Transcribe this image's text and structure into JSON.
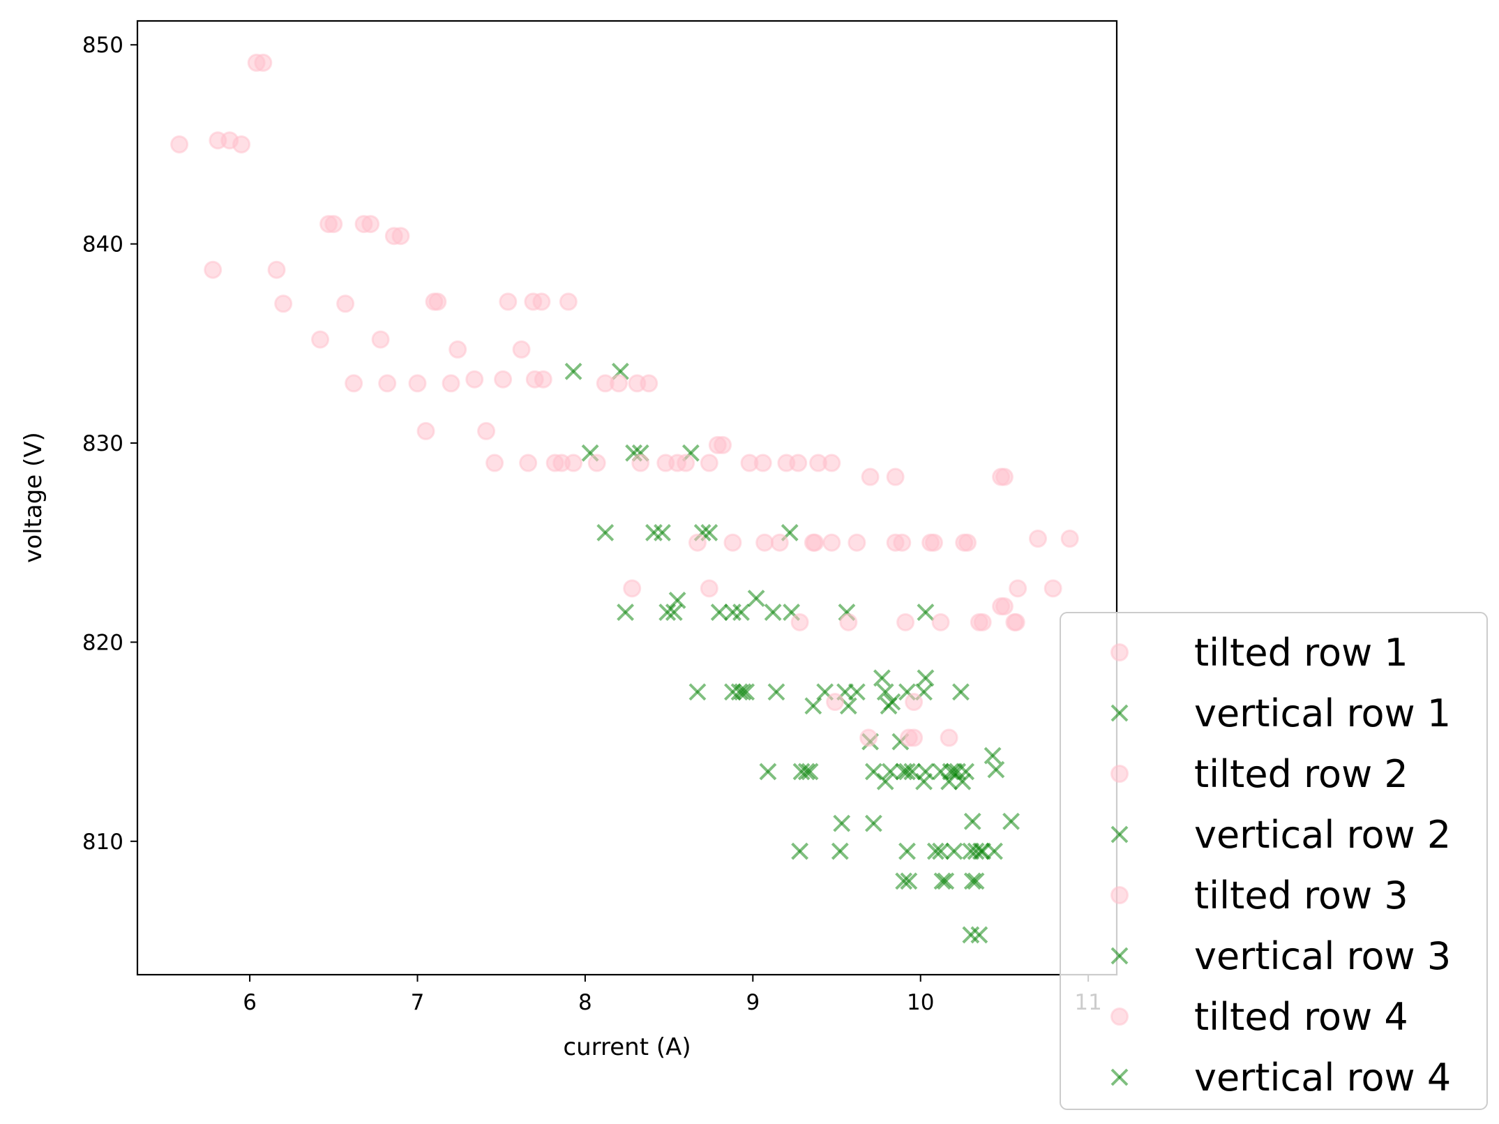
{
  "chart_data": {
    "type": "scatter",
    "xlabel": "current (A)",
    "ylabel": "voltage (V)",
    "xlim": [
      5.33,
      11.17
    ],
    "ylim": [
      803.3,
      851.2
    ],
    "xticks": [
      6,
      7,
      8,
      9,
      10,
      11
    ],
    "yticks": [
      810,
      820,
      830,
      840,
      850
    ],
    "grid": false,
    "legend_position": "lower-right",
    "colors": {
      "tilted": "#ffc0cb",
      "vertical": "#008000"
    },
    "series": [
      {
        "name": "tilted row 1",
        "marker": "circle",
        "points": [
          [
            5.58,
            845.0
          ],
          [
            5.81,
            845.2
          ],
          [
            5.88,
            845.2
          ],
          [
            5.95,
            845.0
          ],
          [
            6.04,
            849.1
          ],
          [
            6.08,
            849.1
          ],
          [
            5.78,
            838.7
          ],
          [
            6.16,
            838.7
          ],
          [
            6.2,
            837.0
          ],
          [
            6.47,
            841.0
          ],
          [
            6.5,
            841.0
          ],
          [
            6.68,
            841.0
          ],
          [
            6.72,
            841.0
          ],
          [
            6.86,
            840.4
          ],
          [
            6.9,
            840.4
          ],
          [
            6.42,
            835.2
          ],
          [
            6.57,
            837.0
          ],
          [
            6.62,
            833.0
          ],
          [
            6.78,
            835.2
          ],
          [
            6.82,
            833.0
          ]
        ]
      },
      {
        "name": "vertical row 1",
        "marker": "x",
        "points": [
          [
            7.93,
            833.6
          ],
          [
            8.21,
            833.6
          ],
          [
            8.03,
            829.5
          ],
          [
            8.29,
            829.5
          ],
          [
            8.33,
            829.5
          ],
          [
            8.63,
            829.5
          ],
          [
            8.12,
            825.5
          ],
          [
            8.41,
            825.5
          ],
          [
            8.46,
            825.5
          ],
          [
            8.7,
            825.5
          ],
          [
            8.74,
            825.5
          ],
          [
            9.22,
            825.5
          ],
          [
            8.24,
            821.5
          ],
          [
            8.49,
            821.5
          ],
          [
            8.53,
            821.5
          ],
          [
            8.55,
            822.1
          ],
          [
            8.8,
            821.5
          ],
          [
            8.88,
            821.5
          ],
          [
            8.93,
            821.5
          ],
          [
            9.02,
            822.2
          ],
          [
            9.12,
            821.5
          ],
          [
            9.23,
            821.5
          ],
          [
            9.56,
            821.5
          ],
          [
            10.03,
            821.5
          ]
        ]
      },
      {
        "name": "tilted row 2",
        "marker": "circle",
        "points": [
          [
            7.0,
            833.0
          ],
          [
            7.05,
            830.6
          ],
          [
            7.1,
            837.1
          ],
          [
            7.12,
            837.1
          ],
          [
            7.2,
            833.0
          ],
          [
            7.24,
            834.7
          ],
          [
            7.34,
            833.2
          ],
          [
            7.41,
            830.6
          ],
          [
            7.46,
            829.0
          ],
          [
            7.51,
            833.2
          ],
          [
            7.54,
            837.1
          ],
          [
            7.62,
            834.7
          ],
          [
            7.66,
            829.0
          ],
          [
            7.69,
            837.1
          ],
          [
            7.7,
            833.2
          ],
          [
            7.74,
            837.1
          ],
          [
            7.75,
            833.2
          ],
          [
            7.82,
            829.0
          ],
          [
            7.86,
            829.0
          ],
          [
            7.9,
            837.1
          ],
          [
            7.93,
            829.0
          ],
          [
            8.07,
            829.0
          ],
          [
            8.12,
            833.0
          ],
          [
            8.2,
            833.0
          ],
          [
            8.31,
            833.0
          ],
          [
            8.33,
            829.0
          ],
          [
            8.38,
            833.0
          ]
        ]
      },
      {
        "name": "vertical row 2",
        "marker": "x",
        "points": [
          [
            8.67,
            817.5
          ],
          [
            8.88,
            817.5
          ],
          [
            8.92,
            817.5
          ],
          [
            8.94,
            817.5
          ],
          [
            8.96,
            817.5
          ],
          [
            9.14,
            817.5
          ],
          [
            9.36,
            816.8
          ],
          [
            9.43,
            817.5
          ],
          [
            9.55,
            817.5
          ],
          [
            9.57,
            816.8
          ],
          [
            9.62,
            817.5
          ],
          [
            9.77,
            818.2
          ],
          [
            9.79,
            817.5
          ],
          [
            9.81,
            816.8
          ],
          [
            9.83,
            817.0
          ],
          [
            9.92,
            817.5
          ],
          [
            10.02,
            817.5
          ],
          [
            10.03,
            818.2
          ],
          [
            10.24,
            817.5
          ]
        ]
      },
      {
        "name": "tilted row 3",
        "marker": "circle",
        "points": [
          [
            8.28,
            822.7
          ],
          [
            8.48,
            829.0
          ],
          [
            8.55,
            829.0
          ],
          [
            8.6,
            829.0
          ],
          [
            8.67,
            825.0
          ],
          [
            8.74,
            829.0
          ],
          [
            8.74,
            822.7
          ],
          [
            8.79,
            829.9
          ],
          [
            8.82,
            829.9
          ],
          [
            8.88,
            825.0
          ],
          [
            8.98,
            829.0
          ],
          [
            9.06,
            829.0
          ],
          [
            9.07,
            825.0
          ],
          [
            9.16,
            825.0
          ],
          [
            9.2,
            829.0
          ],
          [
            9.27,
            829.0
          ],
          [
            9.28,
            821.0
          ],
          [
            9.36,
            825.0
          ],
          [
            9.37,
            825.0
          ],
          [
            9.39,
            829.0
          ],
          [
            9.47,
            825.0
          ],
          [
            9.47,
            829.0
          ],
          [
            9.49,
            817.0
          ],
          [
            9.57,
            821.0
          ],
          [
            9.62,
            825.0
          ],
          [
            9.7,
            828.3
          ],
          [
            9.85,
            828.3
          ],
          [
            9.85,
            825.0
          ],
          [
            9.89,
            825.0
          ]
        ]
      },
      {
        "name": "vertical row 3",
        "marker": "x",
        "points": [
          [
            9.09,
            813.5
          ],
          [
            9.29,
            813.5
          ],
          [
            9.32,
            813.5
          ],
          [
            9.34,
            813.5
          ],
          [
            9.7,
            815.0
          ],
          [
            9.72,
            813.5
          ],
          [
            9.79,
            813.0
          ],
          [
            9.82,
            813.5
          ],
          [
            9.88,
            815.0
          ],
          [
            9.9,
            813.5
          ],
          [
            9.92,
            813.5
          ],
          [
            9.95,
            813.5
          ],
          [
            10.02,
            813.0
          ],
          [
            10.03,
            813.5
          ],
          [
            10.12,
            813.5
          ],
          [
            10.17,
            813.0
          ],
          [
            10.18,
            813.5
          ],
          [
            10.2,
            813.5
          ],
          [
            10.22,
            813.5
          ],
          [
            10.25,
            813.0
          ],
          [
            10.27,
            813.5
          ],
          [
            10.43,
            814.3
          ],
          [
            10.45,
            813.6
          ]
        ]
      },
      {
        "name": "tilted row 4",
        "marker": "circle",
        "points": [
          [
            9.69,
            815.2
          ],
          [
            9.91,
            821.0
          ],
          [
            9.93,
            815.2
          ],
          [
            9.96,
            815.2
          ],
          [
            9.96,
            817.0
          ],
          [
            10.06,
            825.0
          ],
          [
            10.08,
            825.0
          ],
          [
            10.12,
            821.0
          ],
          [
            10.17,
            815.2
          ],
          [
            10.26,
            825.0
          ],
          [
            10.28,
            825.0
          ],
          [
            10.35,
            821.0
          ],
          [
            10.37,
            821.0
          ],
          [
            10.48,
            821.8
          ],
          [
            10.5,
            821.8
          ],
          [
            10.48,
            828.3
          ],
          [
            10.5,
            828.3
          ],
          [
            10.56,
            821.0
          ],
          [
            10.58,
            822.7
          ],
          [
            10.57,
            821.0
          ],
          [
            10.7,
            825.2
          ],
          [
            10.79,
            822.7
          ],
          [
            10.89,
            825.2
          ]
        ]
      },
      {
        "name": "vertical row 4",
        "marker": "x",
        "points": [
          [
            9.28,
            809.5
          ],
          [
            9.52,
            809.5
          ],
          [
            9.53,
            810.9
          ],
          [
            9.72,
            810.9
          ],
          [
            9.9,
            808.0
          ],
          [
            9.92,
            809.5
          ],
          [
            9.93,
            808.0
          ],
          [
            10.09,
            809.5
          ],
          [
            10.12,
            809.5
          ],
          [
            10.13,
            808.0
          ],
          [
            10.15,
            808.0
          ],
          [
            10.2,
            809.5
          ],
          [
            10.3,
            809.5
          ],
          [
            10.31,
            808.0
          ],
          [
            10.31,
            811.0
          ],
          [
            10.3,
            805.3
          ],
          [
            10.33,
            808.0
          ],
          [
            10.33,
            809.5
          ],
          [
            10.35,
            805.3
          ],
          [
            10.36,
            809.5
          ],
          [
            10.37,
            809.5
          ],
          [
            10.44,
            809.5
          ],
          [
            10.54,
            811.0
          ]
        ]
      }
    ]
  }
}
